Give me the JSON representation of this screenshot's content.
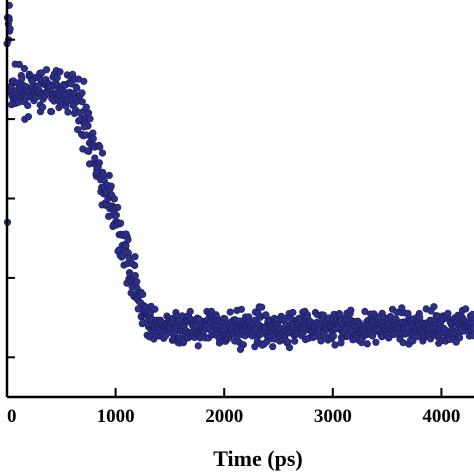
{
  "chart_data": {
    "type": "scatter",
    "title": "",
    "xlabel": "Time (ps)",
    "ylabel": "",
    "xlim": [
      0,
      4300
    ],
    "ylim": [
      0,
      1
    ],
    "grid": false,
    "legend": "none",
    "x_ticks": [
      0,
      1000,
      2000,
      3000,
      4000
    ],
    "x_tick_labels": [
      "0",
      "1000",
      "2000",
      "3000",
      "4000"
    ],
    "y_ticks": [
      0.1,
      0.3,
      0.5,
      0.7,
      0.9
    ],
    "y_tick_labels": [
      "",
      "",
      "",
      "",
      ""
    ],
    "marker_color": "#2e2f86",
    "marker_edge_color": "#1c1d5e",
    "series": [
      {
        "name": "",
        "phases": [
          {
            "x_start": 0,
            "x_end": 30,
            "y_mean": 0.93,
            "y_spread": 0.04
          },
          {
            "x_start": 30,
            "x_end": 650,
            "y_mean": 0.77,
            "y_spread": 0.025
          },
          {
            "x_start": 650,
            "x_end": 1300,
            "y_mean_start": 0.74,
            "y_mean_end": 0.19,
            "y_spread": 0.03
          },
          {
            "x_start": 1300,
            "x_end": 4300,
            "y_mean": 0.175,
            "y_spread": 0.02
          }
        ],
        "outliers": [
          {
            "x": 5,
            "y": 0.44
          },
          {
            "x": 15,
            "y": 0.9
          },
          {
            "x": 20,
            "y": 0.95
          },
          {
            "x": 710,
            "y": 0.68
          },
          {
            "x": 740,
            "y": 0.62
          },
          {
            "x": 2150,
            "y": 0.12
          }
        ]
      }
    ]
  }
}
